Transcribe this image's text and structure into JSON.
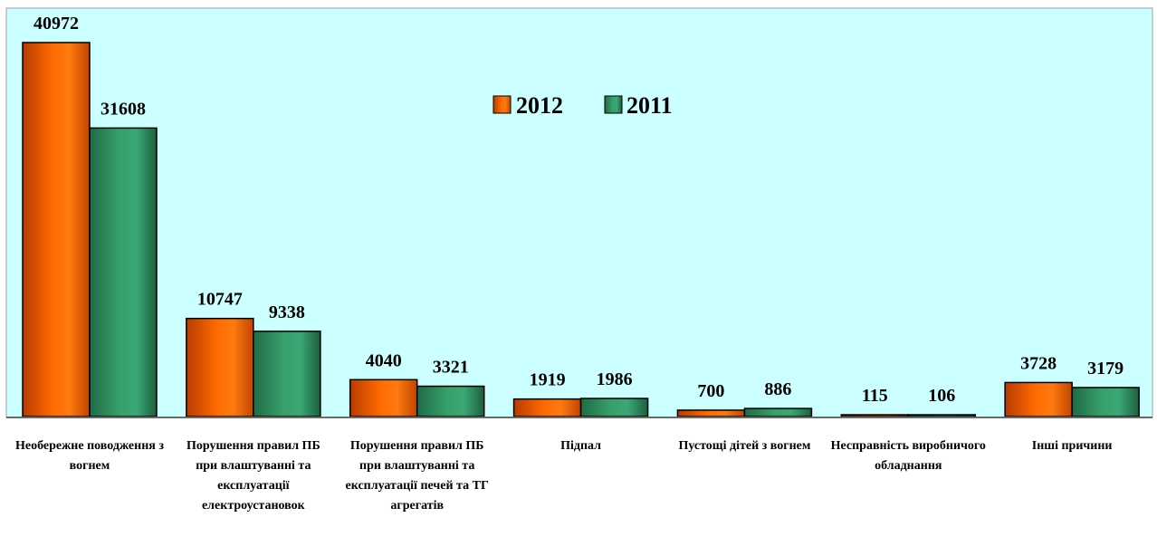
{
  "chart_data": {
    "type": "bar",
    "categories": [
      "Необережне поводження з вогнем",
      "Порушення правил ПБ при влаштуванні та експлуатації електроустановок",
      "Порушення правил ПБ при влаштуванні та експлуатації печей та ТГ агрегатів",
      "Підпал",
      "Пустощі дітей з вогнем",
      "Несправність виробничого обладнання",
      "Інші причини"
    ],
    "series": [
      {
        "name": "2012",
        "values": [
          40972,
          10747,
          4040,
          1919,
          700,
          115,
          3728
        ],
        "color": "#ff6600"
      },
      {
        "name": "2011",
        "values": [
          31608,
          9338,
          3321,
          1986,
          886,
          106,
          3179
        ],
        "color": "#2e8b57"
      }
    ],
    "ylim": [
      0,
      41000
    ],
    "legend_position": "top-center",
    "grid": false,
    "plot_background": "#ccffff",
    "data_labels": true
  }
}
